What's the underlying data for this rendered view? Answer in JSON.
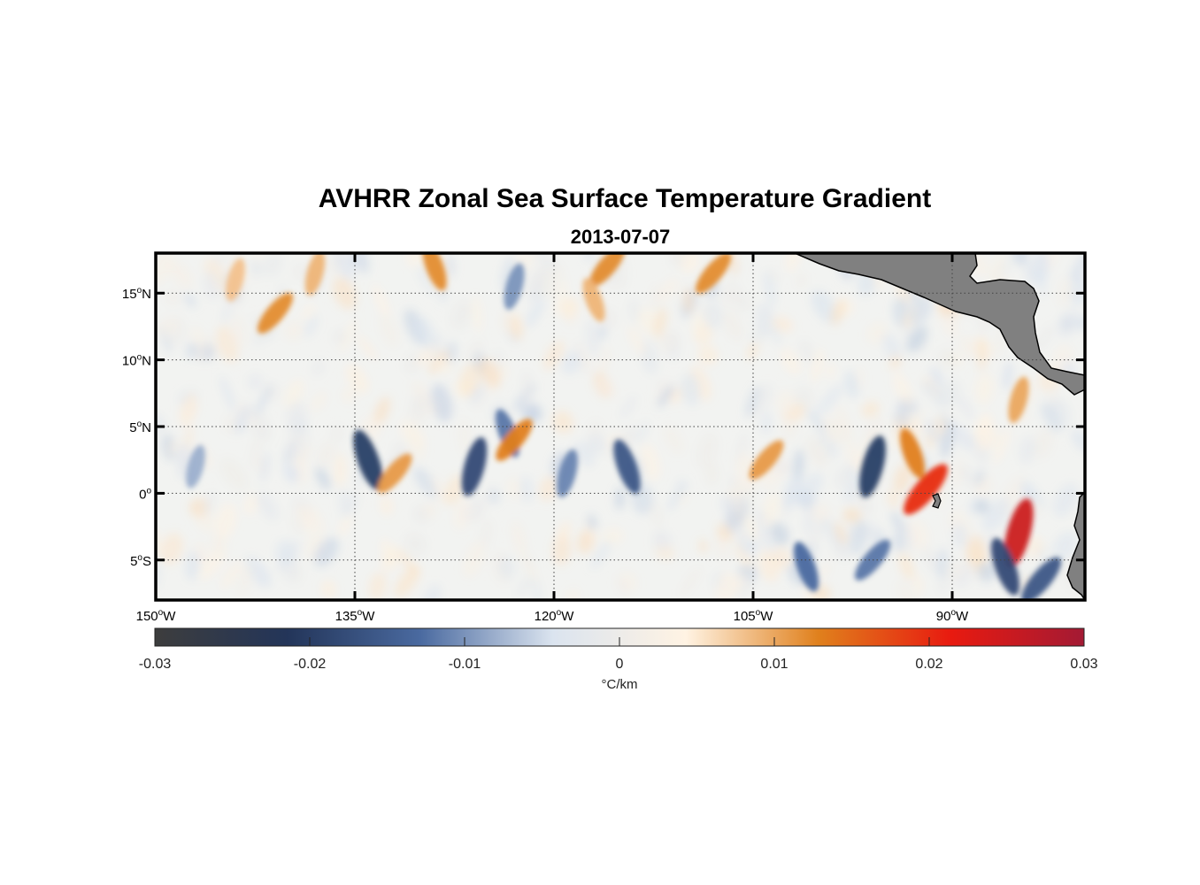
{
  "chart_data": {
    "type": "heatmap",
    "title": "AVHRR Zonal Sea Surface Temperature Gradient",
    "subtitle": "2013-07-07",
    "x_ticks": [
      {
        "value": -150,
        "deg": "150",
        "hemi": "W"
      },
      {
        "value": -135,
        "deg": "135",
        "hemi": "W"
      },
      {
        "value": -120,
        "deg": "120",
        "hemi": "W"
      },
      {
        "value": -105,
        "deg": "105",
        "hemi": "W"
      },
      {
        "value": -90,
        "deg": "90",
        "hemi": "W"
      }
    ],
    "y_ticks": [
      {
        "value": 15,
        "deg": "15",
        "hemi": "N"
      },
      {
        "value": 10,
        "deg": "10",
        "hemi": "N"
      },
      {
        "value": 5,
        "deg": "5",
        "hemi": "N"
      },
      {
        "value": 0,
        "deg": "0",
        "hemi": ""
      },
      {
        "value": -5,
        "deg": "5",
        "hemi": "S"
      }
    ],
    "xlim": [
      -150,
      -80
    ],
    "ylim": [
      -8,
      18
    ],
    "grid": "dotted",
    "colorbar": {
      "range": [
        -0.03,
        0.03
      ],
      "ticks": [
        "-0.03",
        "-0.02",
        "-0.01",
        "0",
        "0.01",
        "0.02",
        "0.03"
      ],
      "tick_values": [
        -0.03,
        -0.02,
        -0.01,
        0,
        0.01,
        0.02,
        0.03
      ],
      "unit": "°C/km",
      "colors": [
        "#3d3d3d",
        "#233559",
        "#4a6aa0",
        "#dbe4ef",
        "#fff3e3",
        "#e0801c",
        "#e81a10",
        "#a31a34"
      ]
    },
    "land_color": "#808080",
    "features": [
      {
        "lon": -141,
        "lat": 13.5,
        "value": 0.012
      },
      {
        "lon": -144,
        "lat": 16,
        "value": 0.008
      },
      {
        "lon": -134,
        "lat": 2.5,
        "value": -0.02
      },
      {
        "lon": -132,
        "lat": 1.5,
        "value": 0.011
      },
      {
        "lon": -126,
        "lat": 2,
        "value": -0.018
      },
      {
        "lon": -123.5,
        "lat": 4.5,
        "value": -0.012
      },
      {
        "lon": -123,
        "lat": 4,
        "value": 0.013
      },
      {
        "lon": -119,
        "lat": 1.5,
        "value": -0.011
      },
      {
        "lon": -114.5,
        "lat": 2,
        "value": -0.016
      },
      {
        "lon": -104,
        "lat": 2.5,
        "value": 0.011
      },
      {
        "lon": -96,
        "lat": 2,
        "value": -0.02
      },
      {
        "lon": -93,
        "lat": 3,
        "value": 0.013
      },
      {
        "lon": -92,
        "lat": 0.3,
        "value": 0.02
      },
      {
        "lon": -85,
        "lat": -3,
        "value": 0.025
      },
      {
        "lon": -86,
        "lat": -5.5,
        "value": -0.018
      },
      {
        "lon": -83.3,
        "lat": -6.5,
        "value": -0.016
      },
      {
        "lon": -85,
        "lat": 7,
        "value": 0.01
      },
      {
        "lon": -129,
        "lat": 17,
        "value": 0.012
      },
      {
        "lon": -116,
        "lat": 17,
        "value": 0.012
      },
      {
        "lon": -123,
        "lat": 15.5,
        "value": -0.01
      },
      {
        "lon": -117,
        "lat": 14.5,
        "value": 0.009
      },
      {
        "lon": -108,
        "lat": 16.5,
        "value": 0.012
      },
      {
        "lon": -138,
        "lat": 16.5,
        "value": 0.009
      },
      {
        "lon": -101,
        "lat": -5.5,
        "value": -0.013
      },
      {
        "lon": -96,
        "lat": -5,
        "value": -0.012
      },
      {
        "lon": -147,
        "lat": 2,
        "value": -0.008
      }
    ]
  }
}
